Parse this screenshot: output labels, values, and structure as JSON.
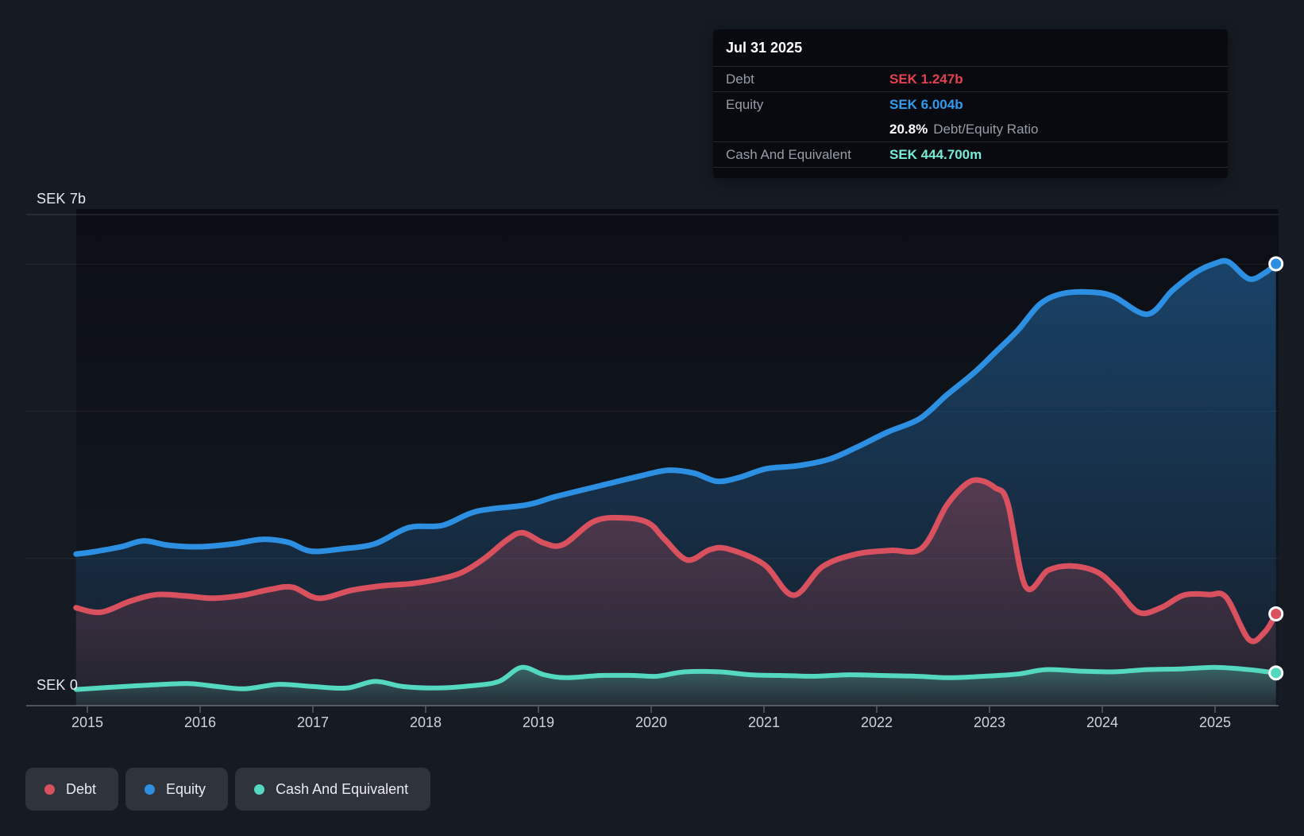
{
  "tooltip": {
    "date": "Jul 31 2025",
    "debt_label": "Debt",
    "debt_value": "SEK 1.247b",
    "equity_label": "Equity",
    "equity_value": "SEK 6.004b",
    "ratio_value": "20.8%",
    "ratio_label": "Debt/Equity Ratio",
    "cash_label": "Cash And Equivalent",
    "cash_value": "SEK 444.700m"
  },
  "legend": {
    "items": [
      {
        "label": "Debt",
        "color": "#d9515f"
      },
      {
        "label": "Equity",
        "color": "#2d8fe2"
      },
      {
        "label": "Cash And Equivalent",
        "color": "#54d8bf"
      }
    ]
  },
  "colors": {
    "background": "#161b23",
    "plot_top": "#0b0e15",
    "debt_line": "#d9515f",
    "equity_line": "#2d8fe2",
    "cash_line": "#54d8bf",
    "tooltip_debt": "#e4414f",
    "tooltip_equity": "#2f9cf0",
    "tooltip_cash": "#76ecd4",
    "gridline": "rgba(255,255,255,0.07)",
    "axis_line": "rgba(255,255,255,0.25)"
  },
  "chart_data": {
    "type": "area",
    "currency": "SEK",
    "y_axis": {
      "top_label": "SEK 7b",
      "bottom_label": "SEK 0",
      "ylim_billions": [
        0,
        7
      ],
      "unlabeled_gridlines_billions": [
        6,
        4,
        2
      ],
      "grid": true
    },
    "x_ticks": [
      "2015",
      "2016",
      "2017",
      "2018",
      "2019",
      "2020",
      "2021",
      "2022",
      "2023",
      "2024",
      "2025"
    ],
    "legend_position": "bottom-left",
    "series": [
      {
        "name": "Equity",
        "unit": "SEK billions",
        "end_value_label": "SEK 6.004b",
        "data": [
          [
            2014.9,
            2.06
          ],
          [
            2015.05,
            2.09
          ],
          [
            2015.3,
            2.16
          ],
          [
            2015.5,
            2.24
          ],
          [
            2015.72,
            2.18
          ],
          [
            2016.0,
            2.16
          ],
          [
            2016.3,
            2.2
          ],
          [
            2016.55,
            2.26
          ],
          [
            2016.78,
            2.22
          ],
          [
            2016.98,
            2.1
          ],
          [
            2017.25,
            2.13
          ],
          [
            2017.55,
            2.2
          ],
          [
            2017.85,
            2.42
          ],
          [
            2018.15,
            2.45
          ],
          [
            2018.45,
            2.64
          ],
          [
            2018.9,
            2.73
          ],
          [
            2019.15,
            2.84
          ],
          [
            2019.55,
            2.99
          ],
          [
            2019.9,
            3.12
          ],
          [
            2020.15,
            3.2
          ],
          [
            2020.38,
            3.16
          ],
          [
            2020.58,
            3.05
          ],
          [
            2020.78,
            3.1
          ],
          [
            2021.02,
            3.22
          ],
          [
            2021.3,
            3.26
          ],
          [
            2021.58,
            3.35
          ],
          [
            2021.82,
            3.51
          ],
          [
            2022.1,
            3.72
          ],
          [
            2022.38,
            3.9
          ],
          [
            2022.62,
            4.22
          ],
          [
            2022.86,
            4.52
          ],
          [
            2023.05,
            4.8
          ],
          [
            2023.25,
            5.1
          ],
          [
            2023.45,
            5.46
          ],
          [
            2023.65,
            5.6
          ],
          [
            2023.9,
            5.62
          ],
          [
            2024.1,
            5.56
          ],
          [
            2024.4,
            5.32
          ],
          [
            2024.62,
            5.64
          ],
          [
            2024.82,
            5.88
          ],
          [
            2025.0,
            6.01
          ],
          [
            2025.12,
            6.03
          ],
          [
            2025.3,
            5.8
          ],
          [
            2025.44,
            5.88
          ],
          [
            2025.54,
            6.004
          ]
        ]
      },
      {
        "name": "Debt",
        "unit": "SEK billions",
        "end_value_label": "SEK 1.247b",
        "data": [
          [
            2014.9,
            1.33
          ],
          [
            2015.12,
            1.27
          ],
          [
            2015.38,
            1.42
          ],
          [
            2015.62,
            1.51
          ],
          [
            2015.88,
            1.49
          ],
          [
            2016.12,
            1.46
          ],
          [
            2016.38,
            1.5
          ],
          [
            2016.62,
            1.58
          ],
          [
            2016.82,
            1.61
          ],
          [
            2017.05,
            1.46
          ],
          [
            2017.35,
            1.57
          ],
          [
            2017.62,
            1.63
          ],
          [
            2017.88,
            1.66
          ],
          [
            2018.12,
            1.72
          ],
          [
            2018.32,
            1.81
          ],
          [
            2018.52,
            2.0
          ],
          [
            2018.72,
            2.25
          ],
          [
            2018.86,
            2.35
          ],
          [
            2019.05,
            2.21
          ],
          [
            2019.22,
            2.19
          ],
          [
            2019.5,
            2.51
          ],
          [
            2019.78,
            2.55
          ],
          [
            2019.98,
            2.48
          ],
          [
            2020.12,
            2.26
          ],
          [
            2020.32,
            1.98
          ],
          [
            2020.52,
            2.12
          ],
          [
            2020.68,
            2.13
          ],
          [
            2021.0,
            1.92
          ],
          [
            2021.26,
            1.5
          ],
          [
            2021.52,
            1.89
          ],
          [
            2021.82,
            2.06
          ],
          [
            2022.12,
            2.11
          ],
          [
            2022.4,
            2.14
          ],
          [
            2022.62,
            2.72
          ],
          [
            2022.8,
            3.02
          ],
          [
            2022.92,
            3.06
          ],
          [
            2023.05,
            2.96
          ],
          [
            2023.16,
            2.76
          ],
          [
            2023.32,
            1.62
          ],
          [
            2023.52,
            1.84
          ],
          [
            2023.72,
            1.9
          ],
          [
            2023.95,
            1.82
          ],
          [
            2024.12,
            1.6
          ],
          [
            2024.32,
            1.27
          ],
          [
            2024.52,
            1.33
          ],
          [
            2024.72,
            1.5
          ],
          [
            2024.95,
            1.51
          ],
          [
            2025.1,
            1.47
          ],
          [
            2025.3,
            0.9
          ],
          [
            2025.44,
            1.0
          ],
          [
            2025.54,
            1.247
          ]
        ]
      },
      {
        "name": "Cash And Equivalent",
        "unit": "SEK billions",
        "end_value_label": "SEK 444.700m",
        "data": [
          [
            2014.9,
            0.22
          ],
          [
            2015.2,
            0.25
          ],
          [
            2015.55,
            0.28
          ],
          [
            2015.9,
            0.3
          ],
          [
            2016.15,
            0.26
          ],
          [
            2016.4,
            0.23
          ],
          [
            2016.7,
            0.29
          ],
          [
            2017.0,
            0.26
          ],
          [
            2017.3,
            0.24
          ],
          [
            2017.55,
            0.33
          ],
          [
            2017.8,
            0.26
          ],
          [
            2018.1,
            0.24
          ],
          [
            2018.4,
            0.27
          ],
          [
            2018.65,
            0.33
          ],
          [
            2018.85,
            0.52
          ],
          [
            2019.05,
            0.42
          ],
          [
            2019.25,
            0.38
          ],
          [
            2019.55,
            0.41
          ],
          [
            2019.85,
            0.41
          ],
          [
            2020.05,
            0.4
          ],
          [
            2020.3,
            0.46
          ],
          [
            2020.6,
            0.46
          ],
          [
            2020.88,
            0.42
          ],
          [
            2021.15,
            0.41
          ],
          [
            2021.45,
            0.4
          ],
          [
            2021.75,
            0.42
          ],
          [
            2022.05,
            0.41
          ],
          [
            2022.35,
            0.4
          ],
          [
            2022.65,
            0.38
          ],
          [
            2022.95,
            0.4
          ],
          [
            2023.25,
            0.43
          ],
          [
            2023.5,
            0.49
          ],
          [
            2023.8,
            0.47
          ],
          [
            2024.1,
            0.46
          ],
          [
            2024.4,
            0.49
          ],
          [
            2024.7,
            0.5
          ],
          [
            2025.0,
            0.52
          ],
          [
            2025.3,
            0.49
          ],
          [
            2025.54,
            0.4447
          ]
        ]
      }
    ]
  }
}
